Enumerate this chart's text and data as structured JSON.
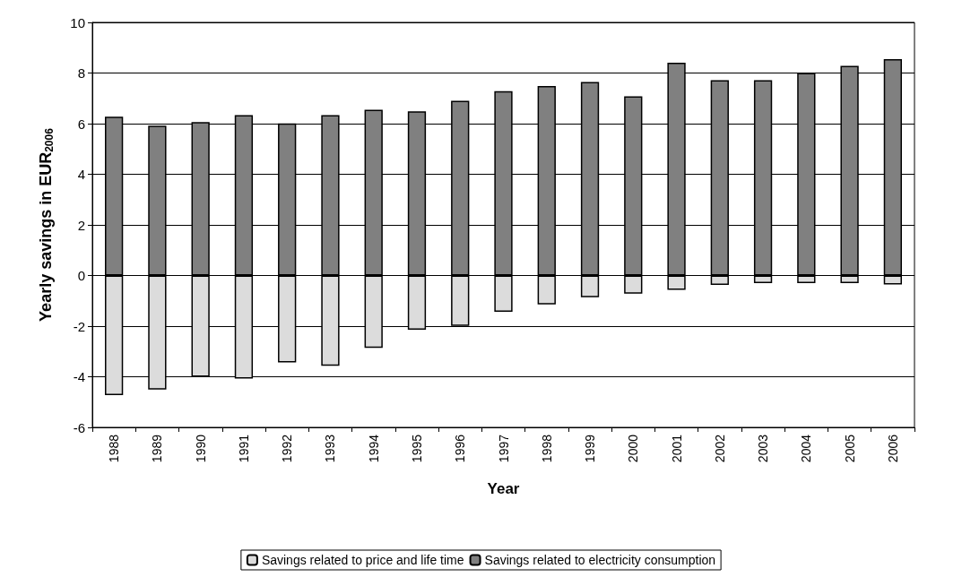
{
  "chart_data": {
    "type": "bar",
    "stacked": true,
    "xlabel": "Year",
    "ylabel": "Yearly savings in EUR$_{2006}$",
    "categories": [
      "1988",
      "1989",
      "1990",
      "1991",
      "1992",
      "1993",
      "1994",
      "1995",
      "1996",
      "1997",
      "1998",
      "1999",
      "2000",
      "2001",
      "2002",
      "2003",
      "2004",
      "2005",
      "2006"
    ],
    "series": [
      {
        "name": "Savings related to price and life time",
        "color": "#dcdcdc",
        "values": [
          -4.73,
          -4.5,
          -4.0,
          -4.07,
          -3.43,
          -3.57,
          -2.86,
          -2.14,
          -1.99,
          -1.43,
          -1.14,
          -0.86,
          -0.72,
          -0.57,
          -0.37,
          -0.3,
          -0.3,
          -0.3,
          -0.35
        ]
      },
      {
        "name": "Savings related to electricity consumption",
        "color": "#808080",
        "values": [
          6.27,
          5.92,
          6.06,
          6.34,
          6.01,
          6.34,
          6.55,
          6.49,
          6.9,
          7.28,
          7.49,
          7.65,
          7.08,
          8.41,
          7.72,
          7.72,
          8.0,
          8.28,
          8.55
        ]
      }
    ],
    "ylim": [
      -6,
      10
    ],
    "yticks": [
      -6,
      -4,
      -2,
      0,
      2,
      4,
      6,
      8,
      10
    ],
    "grid": "y",
    "legend": "bottom"
  }
}
